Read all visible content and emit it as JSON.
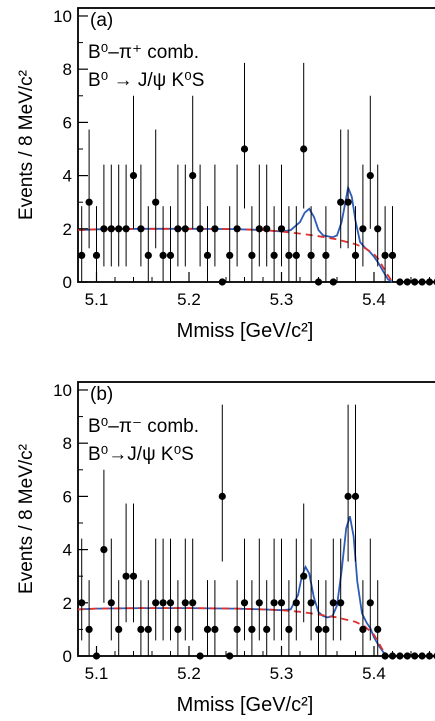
{
  "chart_data": [
    {
      "type": "scatter",
      "panel_label": "(a)",
      "annotation_line1": "B⁰–π⁺ comb.",
      "annotation_line2": "B⁰ → J/ψ K⁰S",
      "xlabel": "Mmiss  [GeV/c²]",
      "ylabel": "Events / 8 MeV/c²",
      "xlim": [
        5.08,
        5.48
      ],
      "ylim": [
        0,
        10.3
      ],
      "xticks": [
        "5.1",
        "5.2",
        "5.3",
        "5.4"
      ],
      "xtick_values": [
        5.1,
        5.2,
        5.3,
        5.4
      ],
      "yticks": [
        "0",
        "2",
        "4",
        "6",
        "8",
        "10"
      ],
      "ytick_values": [
        0,
        2,
        4,
        6,
        8,
        10
      ],
      "data": {
        "x": [
          5.084,
          5.092,
          5.1,
          5.108,
          5.116,
          5.124,
          5.132,
          5.14,
          5.148,
          5.156,
          5.164,
          5.172,
          5.18,
          5.188,
          5.196,
          5.204,
          5.212,
          5.22,
          5.228,
          5.236,
          5.244,
          5.252,
          5.26,
          5.268,
          5.276,
          5.284,
          5.292,
          5.3,
          5.308,
          5.316,
          5.324,
          5.332,
          5.34,
          5.348,
          5.356,
          5.364,
          5.372,
          5.38,
          5.388,
          5.396,
          5.404,
          5.412,
          5.42,
          5.428,
          5.436,
          5.444,
          5.452,
          5.46,
          5.468,
          5.476
        ],
        "y": [
          1,
          3,
          1,
          2,
          2,
          2,
          2,
          4,
          2,
          1,
          3,
          1,
          1,
          2,
          2,
          4,
          2,
          1,
          2,
          0,
          1,
          2,
          5,
          1,
          2,
          2,
          1,
          2,
          1,
          1,
          5,
          1,
          0,
          1,
          0,
          3,
          3,
          1,
          2,
          4,
          2,
          1,
          1,
          0,
          0,
          0,
          0,
          0,
          0,
          0
        ]
      },
      "total_fit": {
        "x": [
          5.08,
          5.1,
          5.15,
          5.2,
          5.25,
          5.28,
          5.3,
          5.31,
          5.32,
          5.325,
          5.33,
          5.335,
          5.34,
          5.345,
          5.35,
          5.355,
          5.36,
          5.365,
          5.368,
          5.372,
          5.376,
          5.38,
          5.385,
          5.39,
          5.395,
          5.4,
          5.405,
          5.41,
          5.415,
          5.42
        ],
        "y": [
          1.95,
          1.98,
          2.0,
          2.0,
          1.99,
          1.95,
          1.9,
          1.95,
          2.25,
          2.6,
          2.75,
          2.45,
          1.95,
          1.75,
          1.72,
          1.68,
          1.75,
          2.25,
          2.8,
          3.55,
          3.2,
          2.3,
          1.5,
          1.3,
          1.15,
          0.95,
          0.7,
          0.4,
          0.1,
          0
        ]
      },
      "background_fit": {
        "x": [
          5.08,
          5.1,
          5.15,
          5.2,
          5.25,
          5.28,
          5.3,
          5.32,
          5.34,
          5.36,
          5.38,
          5.39,
          5.4,
          5.405,
          5.41,
          5.415,
          5.42
        ],
        "y": [
          1.95,
          1.98,
          2.0,
          2.0,
          1.99,
          1.95,
          1.9,
          1.82,
          1.72,
          1.6,
          1.42,
          1.28,
          1.05,
          0.85,
          0.55,
          0.25,
          0
        ]
      }
    },
    {
      "type": "scatter",
      "panel_label": "(b)",
      "annotation_line1": "B⁰–π⁻ comb.",
      "annotation_line2": "B⁰→J/ψ K⁰S",
      "xlabel": "Mmiss  [GeV/c²]",
      "ylabel": "Events / 8 MeV/c²",
      "xlim": [
        5.08,
        5.48
      ],
      "ylim": [
        0,
        10.3
      ],
      "xticks": [
        "5.1",
        "5.2",
        "5.3",
        "5.4"
      ],
      "xtick_values": [
        5.1,
        5.2,
        5.3,
        5.4
      ],
      "yticks": [
        "0",
        "2",
        "4",
        "6",
        "8",
        "10"
      ],
      "ytick_values": [
        0,
        2,
        4,
        6,
        8,
        10
      ],
      "data": {
        "x": [
          5.084,
          5.092,
          5.1,
          5.108,
          5.116,
          5.124,
          5.132,
          5.14,
          5.148,
          5.156,
          5.164,
          5.172,
          5.18,
          5.188,
          5.196,
          5.204,
          5.212,
          5.22,
          5.228,
          5.236,
          5.244,
          5.252,
          5.26,
          5.268,
          5.276,
          5.284,
          5.292,
          5.3,
          5.308,
          5.316,
          5.324,
          5.332,
          5.34,
          5.348,
          5.356,
          5.364,
          5.372,
          5.38,
          5.388,
          5.396,
          5.404,
          5.412,
          5.42,
          5.428,
          5.436,
          5.444,
          5.452,
          5.46,
          5.468,
          5.476
        ],
        "y": [
          2,
          1,
          0,
          4,
          2,
          1,
          3,
          3,
          1,
          1,
          2,
          2,
          2,
          1,
          2,
          2,
          0,
          1,
          1,
          6,
          0,
          1,
          2,
          1,
          2,
          1,
          2,
          2,
          1,
          2,
          3,
          2,
          1,
          1,
          2,
          2,
          6,
          6,
          1,
          2,
          1,
          0,
          0,
          0,
          0,
          0,
          0,
          0,
          0,
          0
        ]
      },
      "total_fit": {
        "x": [
          5.08,
          5.1,
          5.15,
          5.2,
          5.25,
          5.28,
          5.3,
          5.31,
          5.318,
          5.322,
          5.326,
          5.33,
          5.335,
          5.34,
          5.345,
          5.35,
          5.355,
          5.36,
          5.365,
          5.37,
          5.374,
          5.378,
          5.382,
          5.387,
          5.392,
          5.396,
          5.4,
          5.405,
          5.41,
          5.415
        ],
        "y": [
          1.75,
          1.78,
          1.8,
          1.8,
          1.78,
          1.75,
          1.72,
          1.75,
          2.3,
          3.0,
          3.35,
          3.1,
          2.2,
          1.65,
          1.5,
          1.45,
          1.5,
          1.9,
          3.2,
          4.8,
          5.25,
          4.5,
          2.8,
          1.6,
          1.25,
          1.05,
          0.7,
          0.4,
          0.15,
          0
        ]
      },
      "background_fit": {
        "x": [
          5.08,
          5.1,
          5.15,
          5.2,
          5.25,
          5.28,
          5.3,
          5.32,
          5.34,
          5.36,
          5.38,
          5.39,
          5.4,
          5.405,
          5.41,
          5.415
        ],
        "y": [
          1.75,
          1.78,
          1.8,
          1.8,
          1.78,
          1.75,
          1.72,
          1.66,
          1.56,
          1.45,
          1.28,
          1.12,
          0.8,
          0.5,
          0.2,
          0
        ]
      }
    }
  ]
}
